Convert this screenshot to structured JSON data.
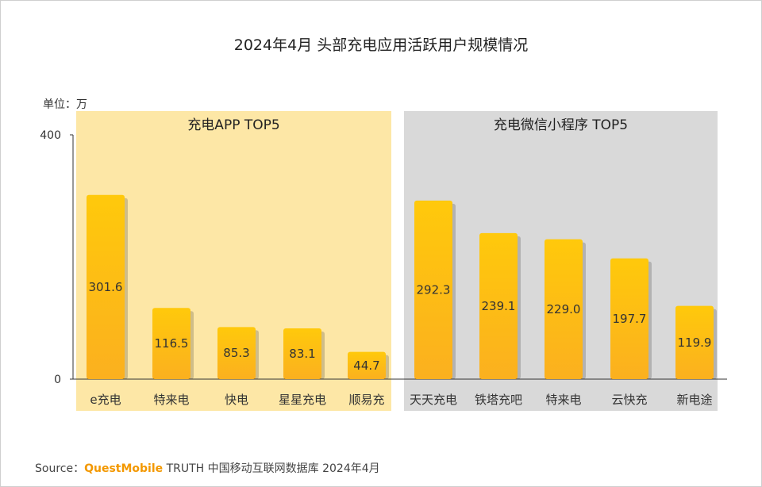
{
  "title": "2024年4月 头部充电应用活跃用户规模情况",
  "unit_label": "单位：万",
  "source": {
    "prefix": "Source：",
    "brand": "QuestMobile",
    "suffix": " TRUTH 中国移动互联网数据库 2024年4月"
  },
  "colors": {
    "bar_top": "#ffc90b",
    "bar_bottom": "#fbb01f",
    "app_panel": "#fde7a6",
    "mini_panel": "#d9d9d9",
    "accent": "#f39800"
  },
  "chart_data": {
    "type": "bar",
    "title": "2024年4月 头部充电应用活跃用户规模情况",
    "ylabel": "单位：万",
    "ylim": [
      0,
      400
    ],
    "yticks": [
      0,
      400
    ],
    "groups": [
      {
        "name": "充电APP TOP5",
        "categories": [
          "e充电",
          "特来电",
          "快电",
          "星星充电",
          "顺易充"
        ],
        "values": [
          301.6,
          116.5,
          85.3,
          83.1,
          44.7
        ]
      },
      {
        "name": "充电微信小程序 TOP5",
        "categories": [
          "天天充电",
          "铁塔充吧",
          "特来电",
          "云快充",
          "新电途"
        ],
        "values": [
          292.3,
          239.1,
          229.0,
          197.7,
          119.9
        ]
      }
    ]
  }
}
